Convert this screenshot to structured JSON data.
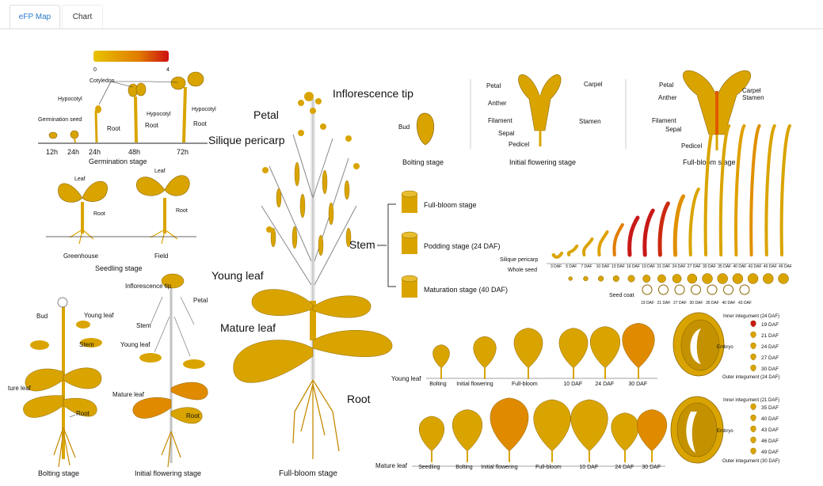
{
  "tabs": [
    {
      "label": "eFP Map"
    },
    {
      "label": "Chart"
    }
  ],
  "colors": {
    "plant": "#d9a400",
    "plant_dark": "#9a7300",
    "mid": "#e08a00",
    "high": "#c81818",
    "root": "#c58a00"
  },
  "legend": {
    "min": "0",
    "max": "4"
  },
  "germination": {
    "title": "Germination stage",
    "labels": {
      "cotyledon": "Cotyledon",
      "hypocotyl": "Hypocotyl",
      "germination_seed": "Germination seed",
      "root": "Root"
    },
    "ticks": [
      "12h",
      "24h",
      "24h",
      "48h",
      "72h"
    ]
  },
  "seedling": {
    "title": "Seedling stage",
    "leaf": "Leaf",
    "root": "Root",
    "greenhouse": "Greenhouse",
    "field": "Field"
  },
  "bolting_plant": {
    "title": "Bolting stage",
    "bud": "Bud",
    "young_leaf": "Young leaf",
    "stem": "Stem",
    "mature_leaf": "ture leaf",
    "root": "Root"
  },
  "initial_plant": {
    "title": "Initial flowering stage",
    "inflorescence": "Inflorescence tip",
    "petal": "Petal",
    "stem": "Stem",
    "young_leaf": "Young leaf",
    "mature_leaf": "Mature leaf",
    "root": "Root"
  },
  "fullbloom_plant": {
    "title": "Full-bloom stage",
    "inflorescence": "Inflorescence tip",
    "petal": "Petal",
    "silique": "Silique pericarp",
    "young_leaf": "Young leaf",
    "mature_leaf": "Mature leaf",
    "stem": "Stem",
    "root": "Root"
  },
  "flowers": {
    "bolting": {
      "title": "Bolting stage",
      "bud": "Bud"
    },
    "initial": {
      "title": "Initial flowering stage",
      "petal": "Petal",
      "anther": "Anther",
      "filament": "Filament",
      "sepal": "Sepal",
      "pedicel": "Pedicel",
      "carpel": "Carpel",
      "stamen": "Stamen"
    },
    "fullbloom": {
      "title": "Full-bloom stage",
      "petal": "Petal",
      "anther": "Anther",
      "filament": "Filament",
      "sepal": "Sepal",
      "pedicel": "Pedicel",
      "carpel": "Carpel",
      "stamen": "Stamen"
    }
  },
  "stem_section": {
    "label": "Stem",
    "items": [
      "Full-bloom stage",
      "Podding stage (24 DAF)",
      "Maturation stage (40 DAF)"
    ]
  },
  "silique": {
    "pericarp": "Silique pericarp",
    "whole_seed": "Whole seed",
    "seed_coat": "Seed coat",
    "daf": [
      "3 DAF",
      "5 DAF",
      "7 DAF",
      "10 DAF",
      "13 DAF",
      "16 DAF",
      "19 DAF",
      "21 DAF",
      "24 DAF",
      "27 DAF",
      "30 DAF",
      "35 DAF",
      "40 DAF",
      "43 DAF",
      "46 DAF",
      "49 DAF"
    ],
    "coat_daf": [
      "19 DAF",
      "21 DAF",
      "27 DAF",
      "30 DAF",
      "35 DAF",
      "40 DAF",
      "43 DAF"
    ]
  },
  "young_leaf_row": {
    "label": "Young leaf",
    "stages": [
      "Bolting",
      "Initial flowering",
      "Full-bloom",
      "10 DAF",
      "24 DAF",
      "30 DAF"
    ]
  },
  "mature_leaf_row": {
    "label": "Mature leaf",
    "stages": [
      "Seedling",
      "Bolting",
      "Initial flowering",
      "Full-bloom",
      "10 DAF",
      "24 DAF",
      "30 DAF"
    ]
  },
  "seed_upper": {
    "inner": "Inner integument (24 DAF)",
    "embryo": "Embryo",
    "outer": "Outer integument (24 DAF)",
    "daf": [
      "19 DAF",
      "21 DAF",
      "24 DAF",
      "27 DAF",
      "30 DAF"
    ]
  },
  "seed_lower": {
    "inner": "Inner integument (21 DAF)",
    "embryo": "Embryo",
    "outer": "Outer integument (30 DAF)",
    "daf": [
      "35 DAF",
      "40 DAF",
      "43 DAF",
      "46 DAF",
      "49 DAF"
    ]
  }
}
